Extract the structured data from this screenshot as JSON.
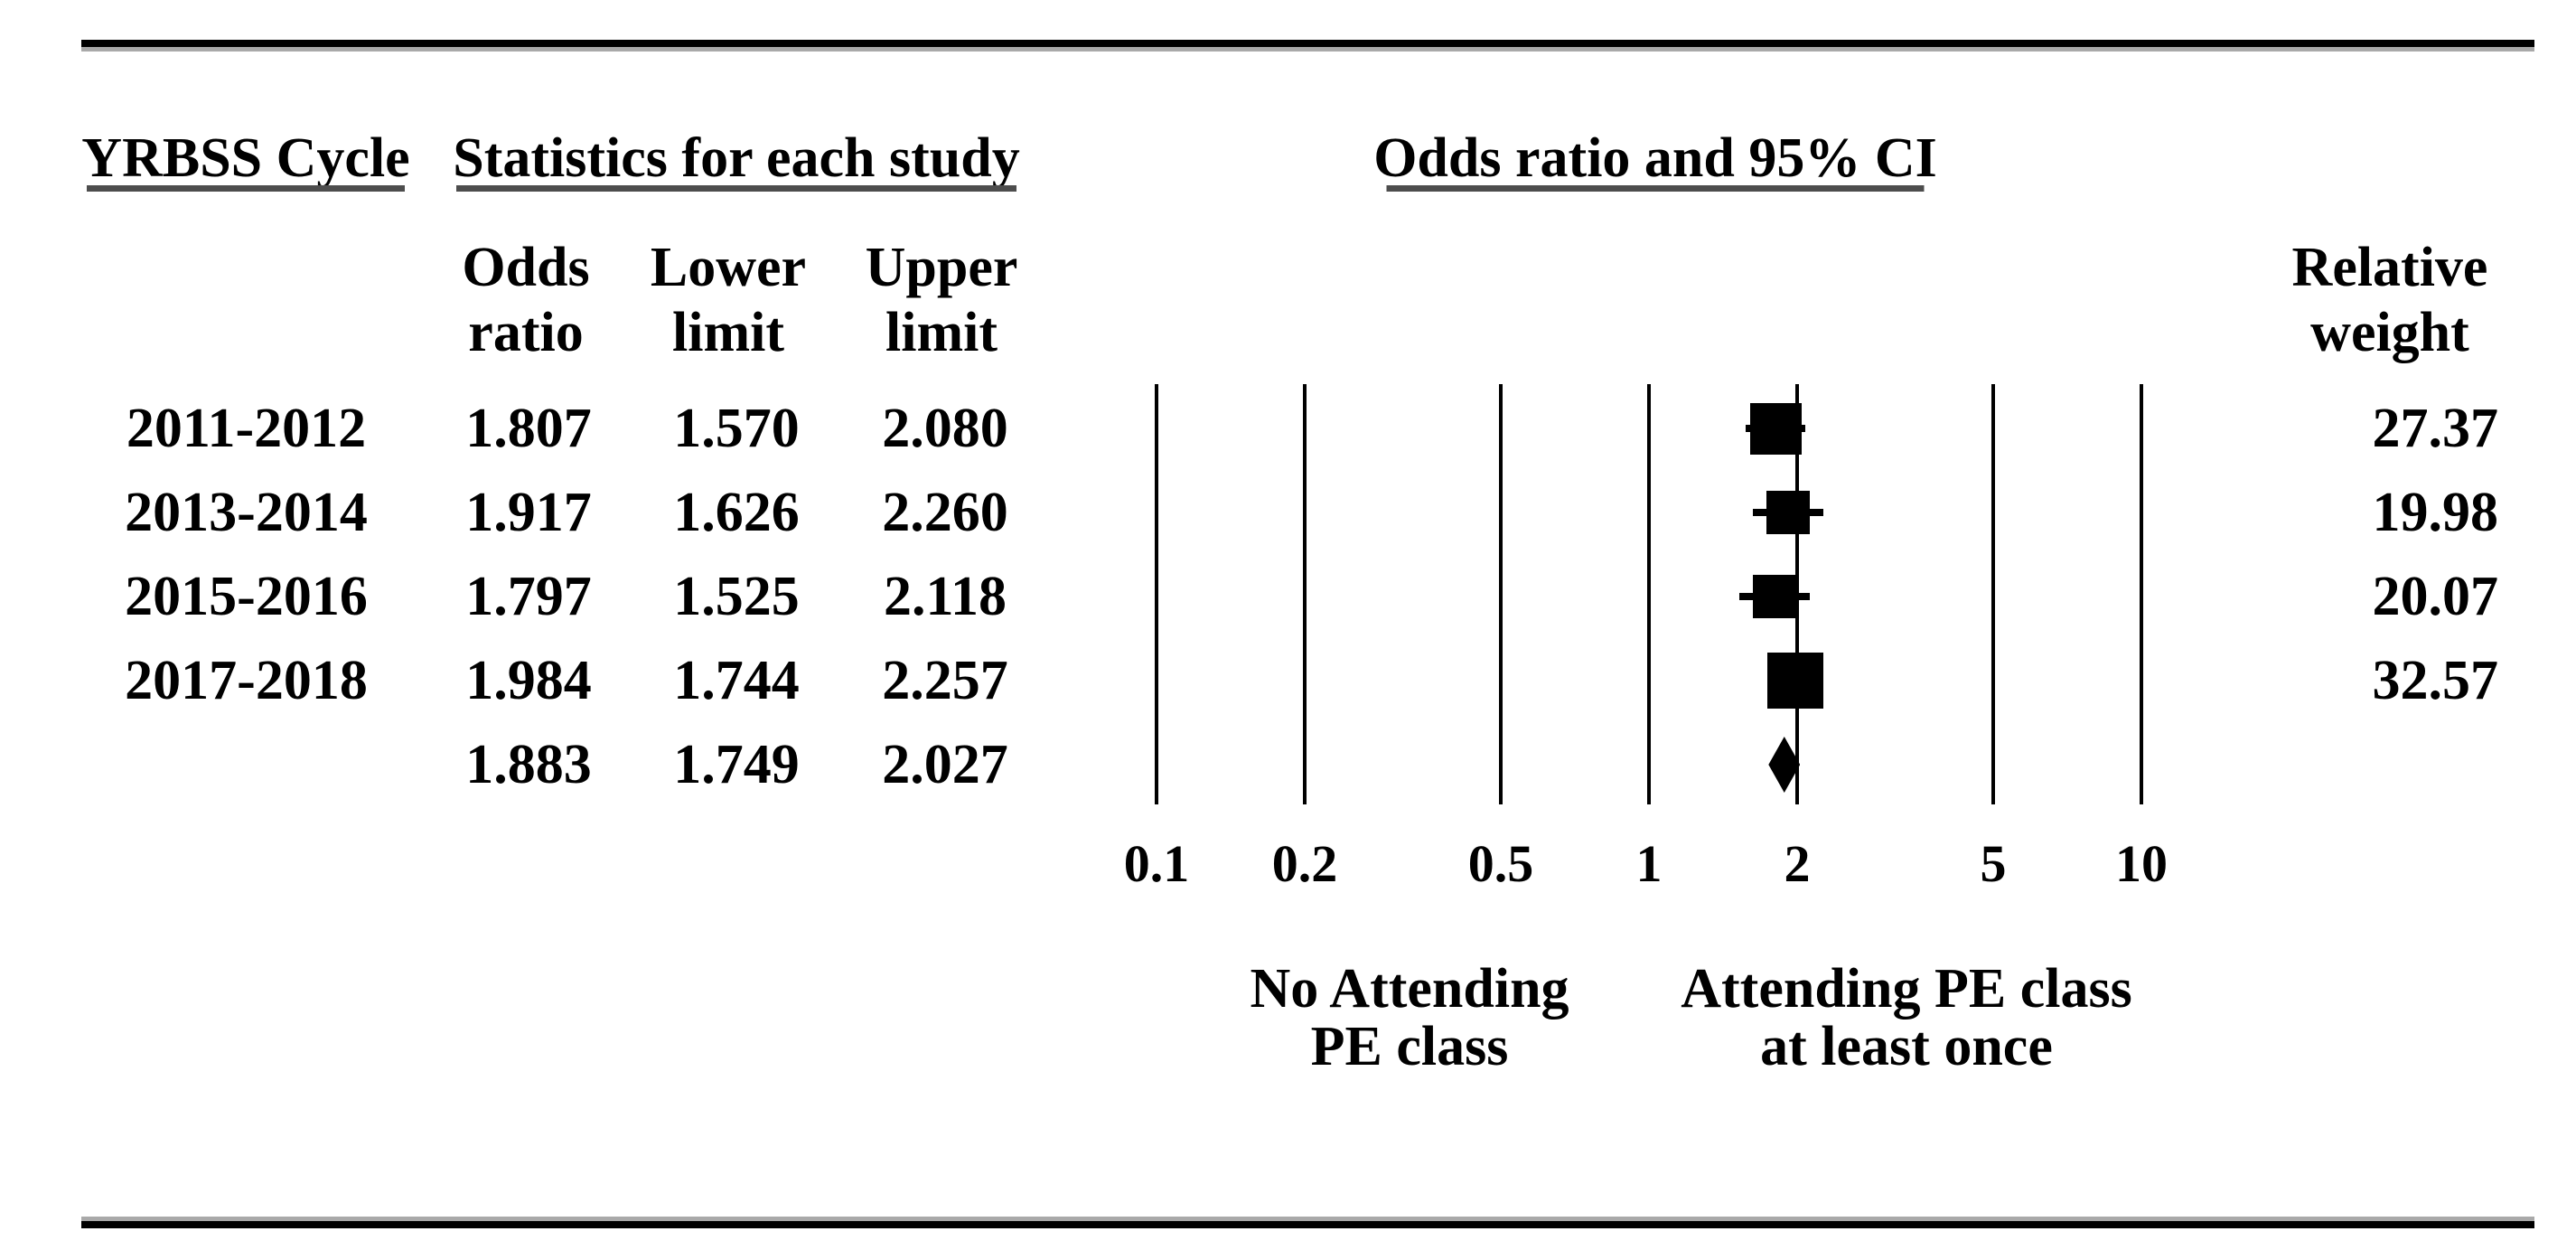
{
  "header": {
    "cycle_group": "YRBSS Cycle",
    "stats_group": "Statistics for each study",
    "ci_group": "Odds ratio and 95% CI",
    "odds_column": {
      "line1": "Odds",
      "line2": "ratio"
    },
    "lower_column": {
      "line1": "Lower",
      "line2": "limit"
    },
    "upper_column": {
      "line1": "Upper",
      "line2": "limit"
    },
    "weight_column": {
      "line1": "Relative",
      "line2": "weight"
    }
  },
  "chart_data": {
    "type": "forest",
    "x_scale": "log10",
    "x_range": [
      0.1,
      10
    ],
    "x_ticks": [
      "0.1",
      "0.2",
      "0.5",
      "1",
      "2",
      "5",
      "10"
    ],
    "grid": true,
    "marker_color": "#000000",
    "studies": [
      {
        "cycle": "2011-2012",
        "odds_ratio": "1.807",
        "lower": "1.570",
        "upper": "2.080",
        "relative_weight": "27.37"
      },
      {
        "cycle": "2013-2014",
        "odds_ratio": "1.917",
        "lower": "1.626",
        "upper": "2.260",
        "relative_weight": "19.98"
      },
      {
        "cycle": "2015-2016",
        "odds_ratio": "1.797",
        "lower": "1.525",
        "upper": "2.118",
        "relative_weight": "20.07"
      },
      {
        "cycle": "2017-2018",
        "odds_ratio": "1.984",
        "lower": "1.744",
        "upper": "2.257",
        "relative_weight": "32.57"
      }
    ],
    "pooled": {
      "odds_ratio": "1.883",
      "lower": "1.749",
      "upper": "2.027"
    },
    "axis_left_label": {
      "line1": "No Attending",
      "line2": "PE class"
    },
    "axis_right_label": {
      "line1": "Attending PE class",
      "line2": "at least once"
    }
  }
}
